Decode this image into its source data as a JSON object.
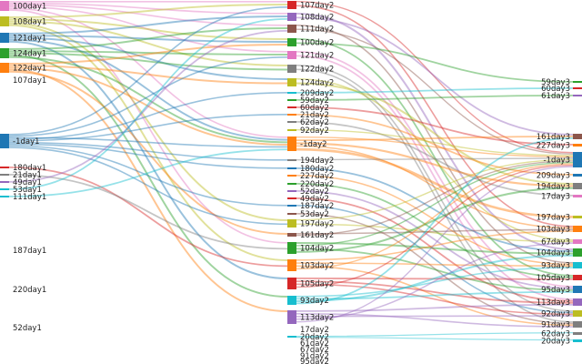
{
  "palette": [
    "#1f77b4",
    "#ff7f0e",
    "#2ca02c",
    "#d62728",
    "#9467bd",
    "#8c564b",
    "#e377c2",
    "#7f7f7f",
    "#bcbd22",
    "#17becf"
  ],
  "columns": [
    {
      "id": "day1",
      "nodes": [
        {
          "label": "100day1",
          "value": 3,
          "color": "#e377c2"
        },
        {
          "label": "108day1",
          "value": 3,
          "color": "#bcbd22"
        },
        {
          "label": "121day1",
          "value": 3,
          "color": "#1f77b4"
        },
        {
          "label": "124day1",
          "value": 3,
          "color": "#2ca02c"
        },
        {
          "label": "122day1",
          "value": 3,
          "color": "#ff7f0e"
        },
        {
          "label": "107day1",
          "value": 0,
          "color": "#8c564b"
        },
        {
          "label": "-1day1",
          "value": 4,
          "color": "#1f77b4"
        },
        {
          "label": "180day1",
          "value": 0.4,
          "color": "#d62728"
        },
        {
          "label": "21day1",
          "value": 0.4,
          "color": "#7f7f7f"
        },
        {
          "label": "49day1",
          "value": 0.4,
          "color": "#9467bd"
        },
        {
          "label": "53day1",
          "value": 0.4,
          "color": "#17becf"
        },
        {
          "label": "111day1",
          "value": 0.4,
          "color": "#17becf"
        },
        {
          "label": "187day1",
          "value": 0,
          "color": "#1f77b4"
        },
        {
          "label": "220day1",
          "value": 0,
          "color": "#1f77b4"
        },
        {
          "label": "52day1",
          "value": 0,
          "color": "#1f77b4"
        }
      ]
    },
    {
      "id": "day2",
      "nodes": [
        {
          "label": "107day2",
          "value": 2,
          "color": "#d62728"
        },
        {
          "label": "108day2",
          "value": 2,
          "color": "#9467bd"
        },
        {
          "label": "111day2",
          "value": 2,
          "color": "#8c564b"
        },
        {
          "label": "100day2",
          "value": 2,
          "color": "#2ca02c"
        },
        {
          "label": "121day2",
          "value": 2,
          "color": "#e377c2"
        },
        {
          "label": "122day2",
          "value": 2,
          "color": "#7f7f7f"
        },
        {
          "label": "124day2",
          "value": 2,
          "color": "#bcbd22"
        },
        {
          "label": "209day2",
          "value": 0.4,
          "color": "#17becf"
        },
        {
          "label": "59day2",
          "value": 0.4,
          "color": "#2ca02c"
        },
        {
          "label": "60day2",
          "value": 0.4,
          "color": "#d62728"
        },
        {
          "label": "21day2",
          "value": 0.4,
          "color": "#ff7f0e"
        },
        {
          "label": "62day2",
          "value": 0.4,
          "color": "#7f7f7f"
        },
        {
          "label": "92day2",
          "value": 0.4,
          "color": "#bcbd22"
        },
        {
          "label": "-1day2",
          "value": 4,
          "color": "#ff7f0e"
        },
        {
          "label": "194day2",
          "value": 0.4,
          "color": "#7f7f7f"
        },
        {
          "label": "180day2",
          "value": 0.4,
          "color": "#1f77b4"
        },
        {
          "label": "227day2",
          "value": 0.4,
          "color": "#ff7f0e"
        },
        {
          "label": "220day2",
          "value": 0.4,
          "color": "#2ca02c"
        },
        {
          "label": "52day2",
          "value": 0.4,
          "color": "#9467bd"
        },
        {
          "label": "49day2",
          "value": 0.4,
          "color": "#d62728"
        },
        {
          "label": "187day2",
          "value": 0.4,
          "color": "#1f77b4"
        },
        {
          "label": "53day2",
          "value": 0.4,
          "color": "#8c564b"
        },
        {
          "label": "197day2",
          "value": 2,
          "color": "#bcbd22"
        },
        {
          "label": "161day2",
          "value": 1,
          "color": "#8c564b"
        },
        {
          "label": "104day2",
          "value": 2.5,
          "color": "#2ca02c"
        },
        {
          "label": "103day2",
          "value": 2.5,
          "color": "#ff7f0e"
        },
        {
          "label": "105day2",
          "value": 2.5,
          "color": "#d62728"
        },
        {
          "label": "93day2",
          "value": 2.5,
          "color": "#17becf"
        },
        {
          "label": "113day2",
          "value": 2.5,
          "color": "#9467bd"
        },
        {
          "label": "17day2",
          "value": 0,
          "color": "#7f7f7f"
        },
        {
          "label": "20day2",
          "value": 0.4,
          "color": "#17becf"
        },
        {
          "label": "61day2",
          "value": 0,
          "color": "#7f7f7f"
        },
        {
          "label": "67day2",
          "value": 0,
          "color": "#7f7f7f"
        },
        {
          "label": "91day2",
          "value": 0,
          "color": "#7f7f7f"
        },
        {
          "label": "95day2",
          "value": 0,
          "color": "#7f7f7f"
        }
      ]
    },
    {
      "id": "day3",
      "nodes": [
        {
          "label": "59day3",
          "value": 0.4,
          "color": "#2ca02c"
        },
        {
          "label": "60day3",
          "value": 0.4,
          "color": "#d62728"
        },
        {
          "label": "61day3",
          "value": 0.4,
          "color": "#9467bd"
        },
        {
          "label": "161day3",
          "value": 1,
          "color": "#8c564b"
        },
        {
          "label": "227day3",
          "value": 0.4,
          "color": "#ff7f0e"
        },
        {
          "label": "-1day3",
          "value": 4,
          "color": "#1f77b4"
        },
        {
          "label": "209day3",
          "value": 0.4,
          "color": "#1f77b4"
        },
        {
          "label": "194day3",
          "value": 1,
          "color": "#7f7f7f"
        },
        {
          "label": "17day3",
          "value": 0.4,
          "color": "#e377c2"
        },
        {
          "label": "197day3",
          "value": 0.4,
          "color": "#bcbd22"
        },
        {
          "label": "103day3",
          "value": 1.2,
          "color": "#ff7f0e"
        },
        {
          "label": "67day3",
          "value": 1,
          "color": "#e377c2"
        },
        {
          "label": "104day3",
          "value": 1.2,
          "color": "#2ca02c"
        },
        {
          "label": "93day3",
          "value": 1.2,
          "color": "#17becf"
        },
        {
          "label": "105day3",
          "value": 1,
          "color": "#d62728"
        },
        {
          "label": "95day3",
          "value": 1.2,
          "color": "#1f77b4"
        },
        {
          "label": "113day3",
          "value": 1.2,
          "color": "#9467bd"
        },
        {
          "label": "92day3",
          "value": 1,
          "color": "#bcbd22"
        },
        {
          "label": "91day3",
          "value": 1,
          "color": "#7f7f7f"
        },
        {
          "label": "62day3",
          "value": 0.4,
          "color": "#7f7f7f"
        },
        {
          "label": "20day3",
          "value": 0.4,
          "color": "#17becf"
        }
      ]
    }
  ],
  "links": [
    [
      "100day1",
      "107day2"
    ],
    [
      "100day1",
      "108day2"
    ],
    [
      "100day1",
      "111day2"
    ],
    [
      "100day1",
      "121day2"
    ],
    [
      "100day1",
      "-1day2"
    ],
    [
      "100day1",
      "104day2"
    ],
    [
      "108day1",
      "107day2"
    ],
    [
      "108day1",
      "100day2"
    ],
    [
      "108day1",
      "122day2"
    ],
    [
      "108day1",
      "197day2"
    ],
    [
      "108day1",
      "103day2"
    ],
    [
      "121day1",
      "108day2"
    ],
    [
      "121day1",
      "100day2"
    ],
    [
      "121day1",
      "124day2"
    ],
    [
      "121day1",
      "-1day2"
    ],
    [
      "121day1",
      "105day2"
    ],
    [
      "124day1",
      "111day2"
    ],
    [
      "124day1",
      "121day2"
    ],
    [
      "124day1",
      "122day2"
    ],
    [
      "124day1",
      "93day2"
    ],
    [
      "124day1",
      "-1day2"
    ],
    [
      "122day1",
      "100day2"
    ],
    [
      "122day1",
      "124day2"
    ],
    [
      "122day1",
      "-1day2"
    ],
    [
      "122day1",
      "113day2"
    ],
    [
      "122day1",
      "161day2"
    ],
    [
      "-1day1",
      "107day2"
    ],
    [
      "-1day1",
      "121day2"
    ],
    [
      "-1day1",
      "-1day2"
    ],
    [
      "-1day1",
      "209day2"
    ],
    [
      "-1day1",
      "21day2"
    ],
    [
      "-1day1",
      "194day2"
    ],
    [
      "-1day1",
      "180day2"
    ],
    [
      "-1day1",
      "187day2"
    ],
    [
      "-1day1",
      "197day2"
    ],
    [
      "180day1",
      "103day2"
    ],
    [
      "21day1",
      "104day2"
    ],
    [
      "49day1",
      "111day2"
    ],
    [
      "53day1",
      "108day2"
    ],
    [
      "111day1",
      "-1day2"
    ],
    [
      "107day2",
      "-1day3"
    ],
    [
      "107day2",
      "103day3"
    ],
    [
      "108day2",
      "104day3"
    ],
    [
      "108day2",
      "161day3"
    ],
    [
      "111day2",
      "93day3"
    ],
    [
      "111day2",
      "-1day3"
    ],
    [
      "100day2",
      "105day3"
    ],
    [
      "100day2",
      "59day3"
    ],
    [
      "121day2",
      "95day3"
    ],
    [
      "121day2",
      "113day3"
    ],
    [
      "122day2",
      "92day3"
    ],
    [
      "122day2",
      "91day3"
    ],
    [
      "124day2",
      "67day3"
    ],
    [
      "124day2",
      "194day3"
    ],
    [
      "209day2",
      "60day3"
    ],
    [
      "59day2",
      "61day3"
    ],
    [
      "60day2",
      "227day3"
    ],
    [
      "21day2",
      "209day3"
    ],
    [
      "62day2",
      "17day3"
    ],
    [
      "92day2",
      "-1day3"
    ],
    [
      "-1day2",
      "-1day3"
    ],
    [
      "-1day2",
      "161day3"
    ],
    [
      "-1day2",
      "194day3"
    ],
    [
      "-1day2",
      "103day3"
    ],
    [
      "-1day2",
      "197day3"
    ],
    [
      "194day2",
      "-1day3"
    ],
    [
      "180day2",
      "104day3"
    ],
    [
      "227day2",
      "93day3"
    ],
    [
      "220day2",
      "105day3"
    ],
    [
      "52day2",
      "95day3"
    ],
    [
      "49day2",
      "113day3"
    ],
    [
      "187day2",
      "92day3"
    ],
    [
      "53day2",
      "91day3"
    ],
    [
      "197day2",
      "-1day3"
    ],
    [
      "197day2",
      "67day3"
    ],
    [
      "161day2",
      "103day3"
    ],
    [
      "161day2",
      "-1day3"
    ],
    [
      "104day2",
      "104day3"
    ],
    [
      "104day2",
      "-1day3"
    ],
    [
      "104day2",
      "95day3"
    ],
    [
      "104day2",
      "194day3"
    ],
    [
      "103day2",
      "103day3"
    ],
    [
      "103day2",
      "93day3"
    ],
    [
      "103day2",
      "91day3"
    ],
    [
      "103day2",
      "-1day3"
    ],
    [
      "105day2",
      "105day3"
    ],
    [
      "105day2",
      "113day3"
    ],
    [
      "105day2",
      "92day3"
    ],
    [
      "105day2",
      "-1day3"
    ],
    [
      "93day2",
      "93day3"
    ],
    [
      "93day2",
      "95day3"
    ],
    [
      "93day2",
      "104day3"
    ],
    [
      "93day2",
      "161day3"
    ],
    [
      "113day2",
      "113day3"
    ],
    [
      "113day2",
      "91day3"
    ],
    [
      "113day2",
      "92day3"
    ],
    [
      "113day2",
      "67day3"
    ],
    [
      "113day2",
      "-1day3"
    ],
    [
      "20day2",
      "62day3"
    ],
    [
      "20day2",
      "20day3"
    ]
  ]
}
